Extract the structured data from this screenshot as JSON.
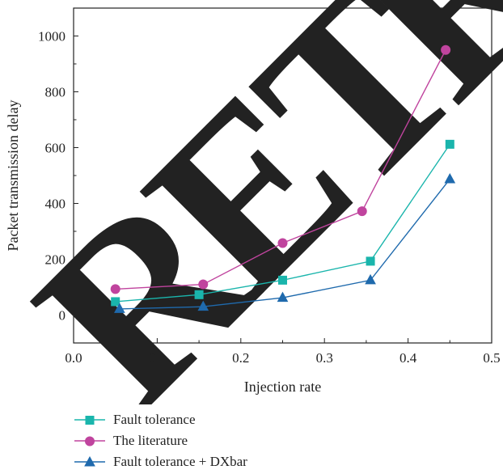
{
  "watermark": "RETRACTED",
  "chart_data": {
    "type": "line",
    "xlabel": "Injection rate",
    "ylabel": "Packet transmission delay",
    "xlim": [
      0.0,
      0.5
    ],
    "ylim": [
      -100,
      1100
    ],
    "xticks": [
      "0.0",
      "0.1",
      "0.2",
      "0.3",
      "0.4",
      "0.5"
    ],
    "yticks": [
      "0",
      "200",
      "400",
      "600",
      "800",
      "1000"
    ],
    "grid": false,
    "legend_position": "bottom",
    "series": [
      {
        "name": "Fault tolerance",
        "color": "#1ab5ac",
        "marker": "square",
        "x": [
          0.05,
          0.15,
          0.25,
          0.355,
          0.45
        ],
        "y": [
          48,
          73,
          125,
          193,
          612
        ]
      },
      {
        "name": "The literature",
        "color": "#c0449e",
        "marker": "circle",
        "x": [
          0.05,
          0.155,
          0.25,
          0.345,
          0.445
        ],
        "y": [
          93,
          110,
          258,
          372,
          950
        ]
      },
      {
        "name": "Fault tolerance + DXbar",
        "color": "#1f6aad",
        "marker": "triangle",
        "x": [
          0.055,
          0.155,
          0.25,
          0.355,
          0.45
        ],
        "y": [
          22,
          30,
          62,
          125,
          487
        ]
      }
    ]
  }
}
